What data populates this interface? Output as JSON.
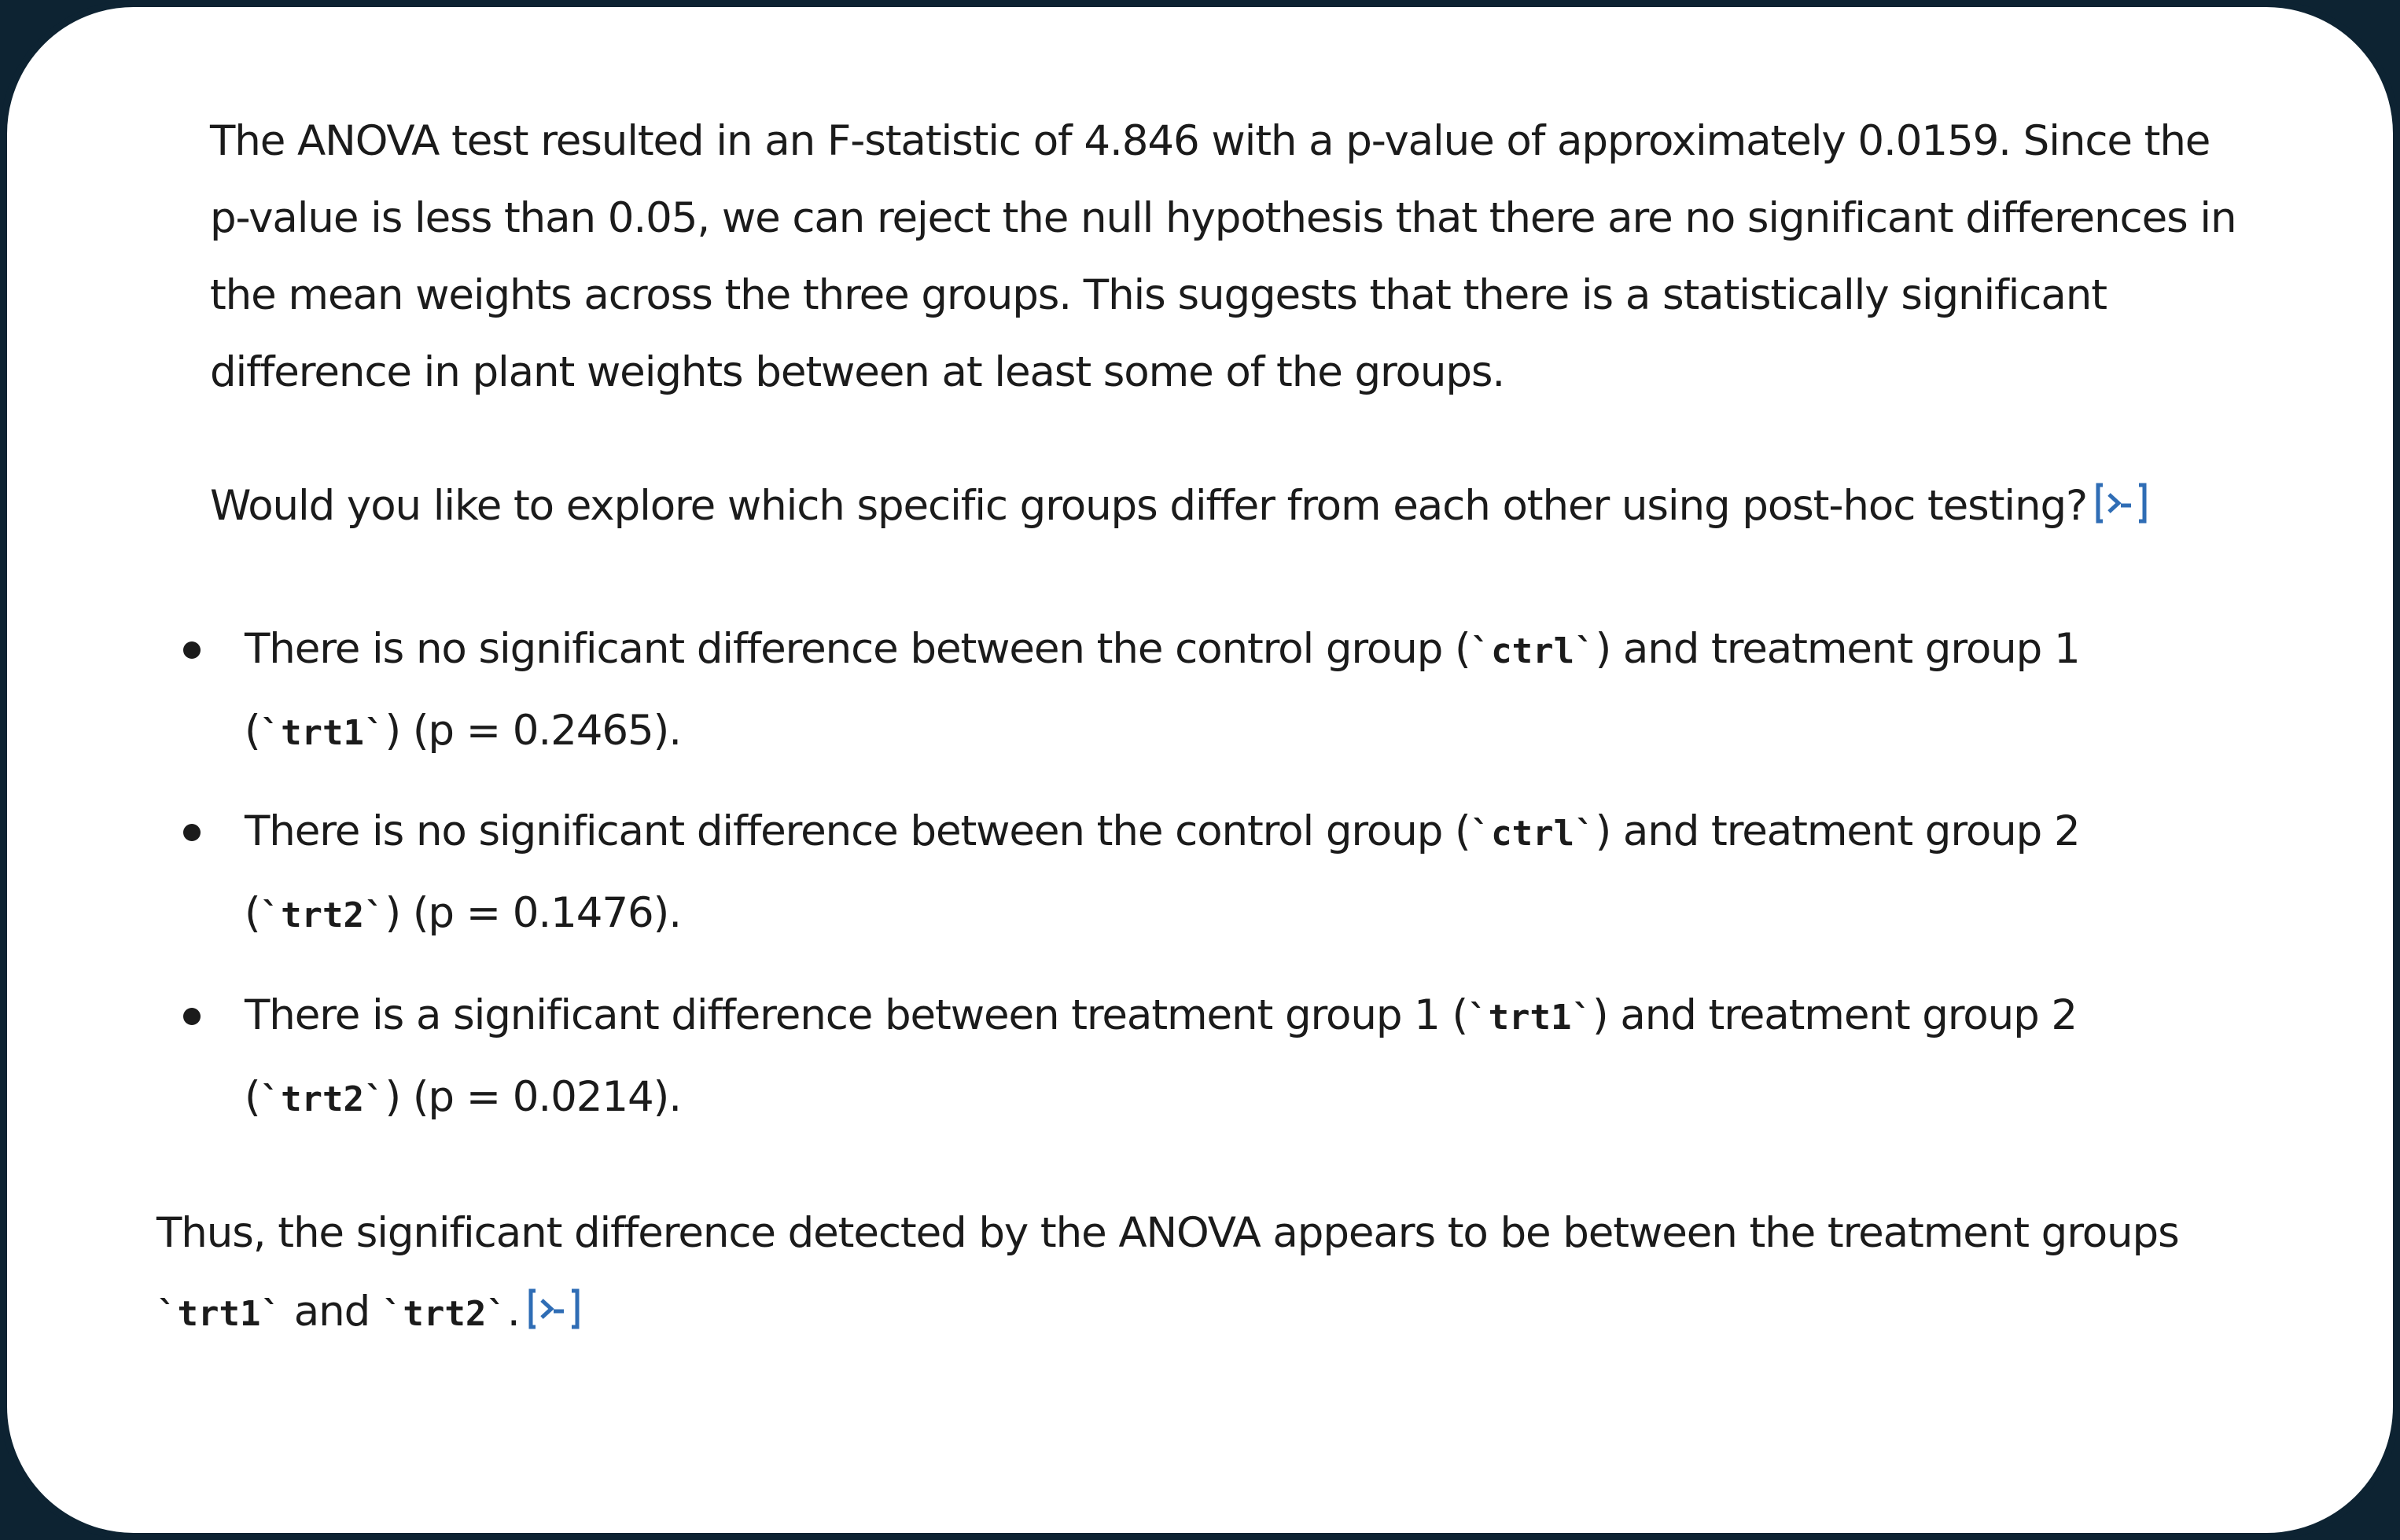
{
  "message": {
    "paragraph1": {
      "line1": "The ANOVA test resulted in an F-statistic of 4.846 with a p-value of approximately 0.0159. Since the",
      "line2": "p-value is less than 0.05, we can reject the null hypothesis that there are no significant differences in",
      "line3": "the mean weights across the three groups. This suggests that there is a statistically significant",
      "line4": "difference in plant weights between at least some of the groups."
    },
    "question": "Would you like to explore which specific groups differ from each other using post-hoc testing?",
    "bullets": [
      {
        "a1": "There is no significant difference between the control group (",
        "code1": "`ctrl`",
        "a2": ") and treatment group 1",
        "b1": "(",
        "code2": "`trt1`",
        "b2": ") (p = 0.2465)."
      },
      {
        "a1": "There is no significant difference between the control group (",
        "code1": "`ctrl`",
        "a2": ") and treatment group 2",
        "b1": "(",
        "code2": "`trt2`",
        "b2": ") (p = 0.1476)."
      },
      {
        "a1": "There is a significant difference between treatment group 1 (",
        "code1": "`trt1`",
        "a2": ") and treatment group 2",
        "b1": "(",
        "code2": "`trt2`",
        "b2": ") (p = 0.0214)."
      }
    ],
    "conclusion": {
      "line1": "Thus, the significant difference detected by the ANOVA appears to be between the treatment groups",
      "code1": "`trt1`",
      "and": " and ",
      "code2": "`trt2`",
      "end": "."
    },
    "icon": "code-source-icon",
    "accent_color": "#2f6db5"
  }
}
